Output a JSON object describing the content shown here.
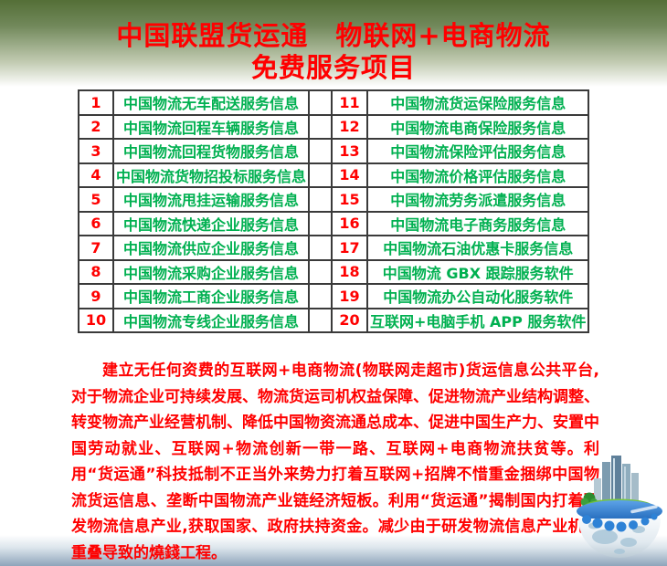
{
  "header": {
    "title_line1": "中国联盟货运通　物联网+电商物流",
    "title_line2": "免费服务项目"
  },
  "table": {
    "rows": [
      {
        "left_num": "1",
        "left_label": "中国物流无车配送服务信息",
        "right_num": "11",
        "right_label": "中国物流货运保险服务信息"
      },
      {
        "left_num": "2",
        "left_label": "中国物流回程车辆服务信息",
        "right_num": "12",
        "right_label": "中国物流电商保险服务信息"
      },
      {
        "left_num": "3",
        "left_label": "中国物流回程货物服务信息",
        "right_num": "13",
        "right_label": "中国物流保险评估服务信息"
      },
      {
        "left_num": "4",
        "left_label": "中国物流货物招投标服务信息",
        "right_num": "14",
        "right_label": "中国物流价格评估服务信息"
      },
      {
        "left_num": "5",
        "left_label": "中国物流甩挂运输服务信息",
        "right_num": "15",
        "right_label": "中国物流劳务派遣服务信息"
      },
      {
        "left_num": "6",
        "left_label": "中国物流快递企业服务信息",
        "right_num": "16",
        "right_label": "中国物流电子商务服务信息"
      },
      {
        "left_num": "7",
        "left_label": "中国物流供应企业服务信息",
        "right_num": "17",
        "right_label": "中国物流石油优惠卡服务信息"
      },
      {
        "left_num": "8",
        "left_label": "中国物流采购企业服务信息",
        "right_num": "18",
        "right_label": "中国物流 GBX 跟踪服务软件"
      },
      {
        "left_num": "9",
        "left_label": "中国物流工商企业服务信息",
        "right_num": "19",
        "right_label": "中国物流办公自动化服务软件"
      },
      {
        "left_num": "10",
        "left_label": "中国物流专线企业服务信息",
        "right_num": "20",
        "right_label": "互联网+电脑手机 APP 服务软件"
      }
    ]
  },
  "paragraph": {
    "text": "建立无任何资费的互联网+电商物流(物联网走超市)货运信息公共平台,对于物流企业可持续发展、物流货运司机权益保障、促进物流产业结构调整、转变物流产业经营机制、降低中国物资流通总成本、促进中国生产力、安置中国劳动就业、互联网+物流创新一带一路、互联网+电商物流扶贫等。利用“货运通”科技抵制不正当外来势力打着互联网+招牌不惜重金捆绑中国物流货运信息、垄断中国物流产业链经济短板。利用“货运通”揭制国内打着研发物流信息产业,获取国家、政府扶持资金。减少由于研发物流信息产业机构重叠导致的燒錢工程。"
  },
  "graphic": {
    "label": "globe-city-illustration"
  },
  "colors": {
    "title_red": "#ff0000",
    "number_red": "#ff0000",
    "service_green": "#00b050",
    "paragraph_red": "#ff0000",
    "table_border": "#3a3a3a",
    "bg_top": "#546f37",
    "bg_bottom": "#8ea4ba",
    "globe_blue": "#2e82d6",
    "grass_green": "#5ab22f"
  }
}
